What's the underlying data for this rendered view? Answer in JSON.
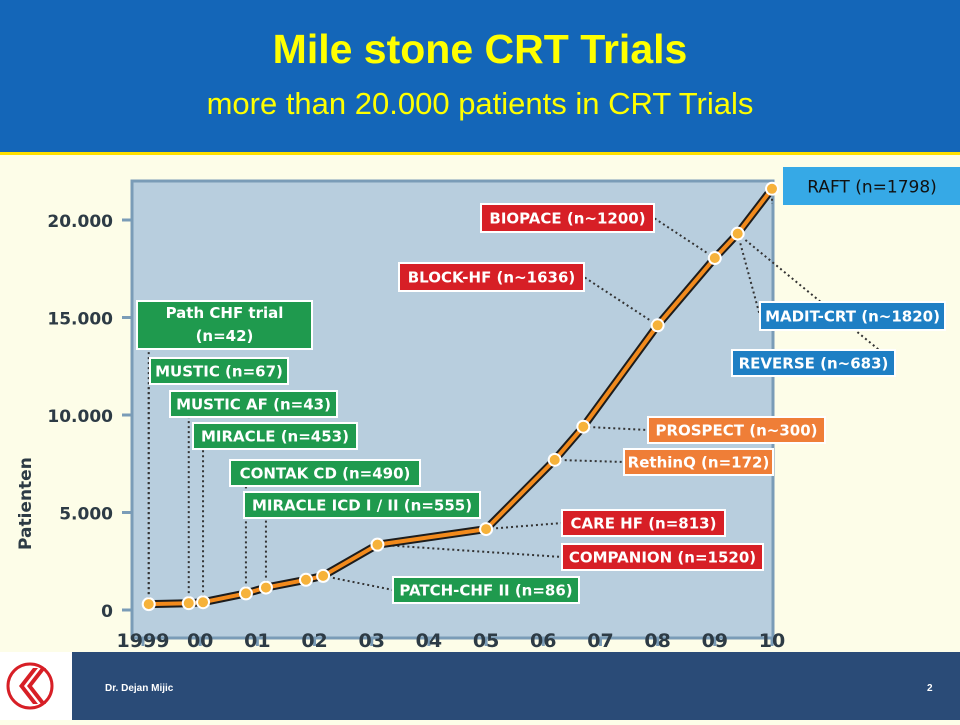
{
  "slide": {
    "title": "Mile stone CRT Trials",
    "subtitle": "more than 20.000 patients in CRT Trials",
    "footer_author": "Dr. Dejan Mijic",
    "page_number": "2"
  },
  "colors": {
    "header": "#1466b8",
    "title_text": "#ffff00",
    "plot_bg": "#b8cede",
    "line": "#f28a1c",
    "green_box": "#1f9a4e",
    "red_box": "#d71f26",
    "blue_box": "#1e7fc4",
    "orange_box": "#ef7e37"
  },
  "chart_data": {
    "type": "line",
    "title": "Mile stone CRT Trials",
    "ylabel": "Patienten",
    "xlabel": "",
    "xlim": [
      1999,
      2010
    ],
    "ylim": [
      0,
      21500
    ],
    "x_ticks": [
      {
        "value": 1999,
        "label": "1999"
      },
      {
        "value": 2000,
        "label": "00"
      },
      {
        "value": 2001,
        "label": "01"
      },
      {
        "value": 2002,
        "label": "02"
      },
      {
        "value": 2003,
        "label": "03"
      },
      {
        "value": 2004,
        "label": "04"
      },
      {
        "value": 2005,
        "label": "05"
      },
      {
        "value": 2006,
        "label": "06"
      },
      {
        "value": 2007,
        "label": "07"
      },
      {
        "value": 2008,
        "label": "08"
      },
      {
        "value": 2009,
        "label": "09"
      },
      {
        "value": 2010,
        "label": "10"
      }
    ],
    "y_ticks": [
      {
        "value": 0,
        "label": "0"
      },
      {
        "value": 5000,
        "label": "5.000"
      },
      {
        "value": 10000,
        "label": "10.000"
      },
      {
        "value": 15000,
        "label": "15.000"
      },
      {
        "value": 20000,
        "label": "20.000"
      }
    ],
    "points": [
      {
        "x": 1999.1,
        "y": 300
      },
      {
        "x": 1999.8,
        "y": 350
      },
      {
        "x": 2000.05,
        "y": 400
      },
      {
        "x": 2000.8,
        "y": 850
      },
      {
        "x": 2001.15,
        "y": 1150
      },
      {
        "x": 2001.85,
        "y": 1550
      },
      {
        "x": 2002.15,
        "y": 1750
      },
      {
        "x": 2003.1,
        "y": 3350
      },
      {
        "x": 2005.0,
        "y": 4150
      },
      {
        "x": 2006.2,
        "y": 7700
      },
      {
        "x": 2006.7,
        "y": 9400
      },
      {
        "x": 2008.0,
        "y": 14600
      },
      {
        "x": 2009.0,
        "y": 18050
      },
      {
        "x": 2009.4,
        "y": 19300
      },
      {
        "x": 2010.0,
        "y": 21600
      }
    ],
    "annotations": [
      {
        "label": "Path  CHF trial\n(n=42)",
        "color": "green",
        "anchor_point": 0
      },
      {
        "label": "MUSTIC (n=67)",
        "color": "green",
        "anchor_point": 0
      },
      {
        "label": "MUSTIC AF (n=43)",
        "color": "green",
        "anchor_point": 1
      },
      {
        "label": "MIRACLE (n=453)",
        "color": "green",
        "anchor_point": 2
      },
      {
        "label": "CONTAK CD (n=490)",
        "color": "green",
        "anchor_point": 3
      },
      {
        "label": "MIRACLE ICD I / II (n=555)",
        "color": "green",
        "anchor_point": 4
      },
      {
        "label": "PATCH-CHF II (n=86)",
        "color": "green",
        "anchor_point": 6
      },
      {
        "label": "CARE HF (n=813)",
        "color": "red",
        "anchor_point": 8
      },
      {
        "label": "COMPANION (n=1520)",
        "color": "red",
        "anchor_point": 7
      },
      {
        "label": "RethinQ (n=172)",
        "color": "orange",
        "anchor_point": 9
      },
      {
        "label": "PROSPECT (n~300)",
        "color": "orange",
        "anchor_point": 10
      },
      {
        "label": "BLOCK-HF (n~1636)",
        "color": "red",
        "anchor_point": 11
      },
      {
        "label": "BIOPACE (n~1200)",
        "color": "red",
        "anchor_point": 12
      },
      {
        "label": "REVERSE (n~683)",
        "color": "blue",
        "anchor_point": 13
      },
      {
        "label": "MADIT-CRT (n~1820)",
        "color": "blue",
        "anchor_point": 13
      },
      {
        "label": "RAFT (n=1798)",
        "color": "blue-light",
        "anchor_point": 14
      }
    ]
  }
}
